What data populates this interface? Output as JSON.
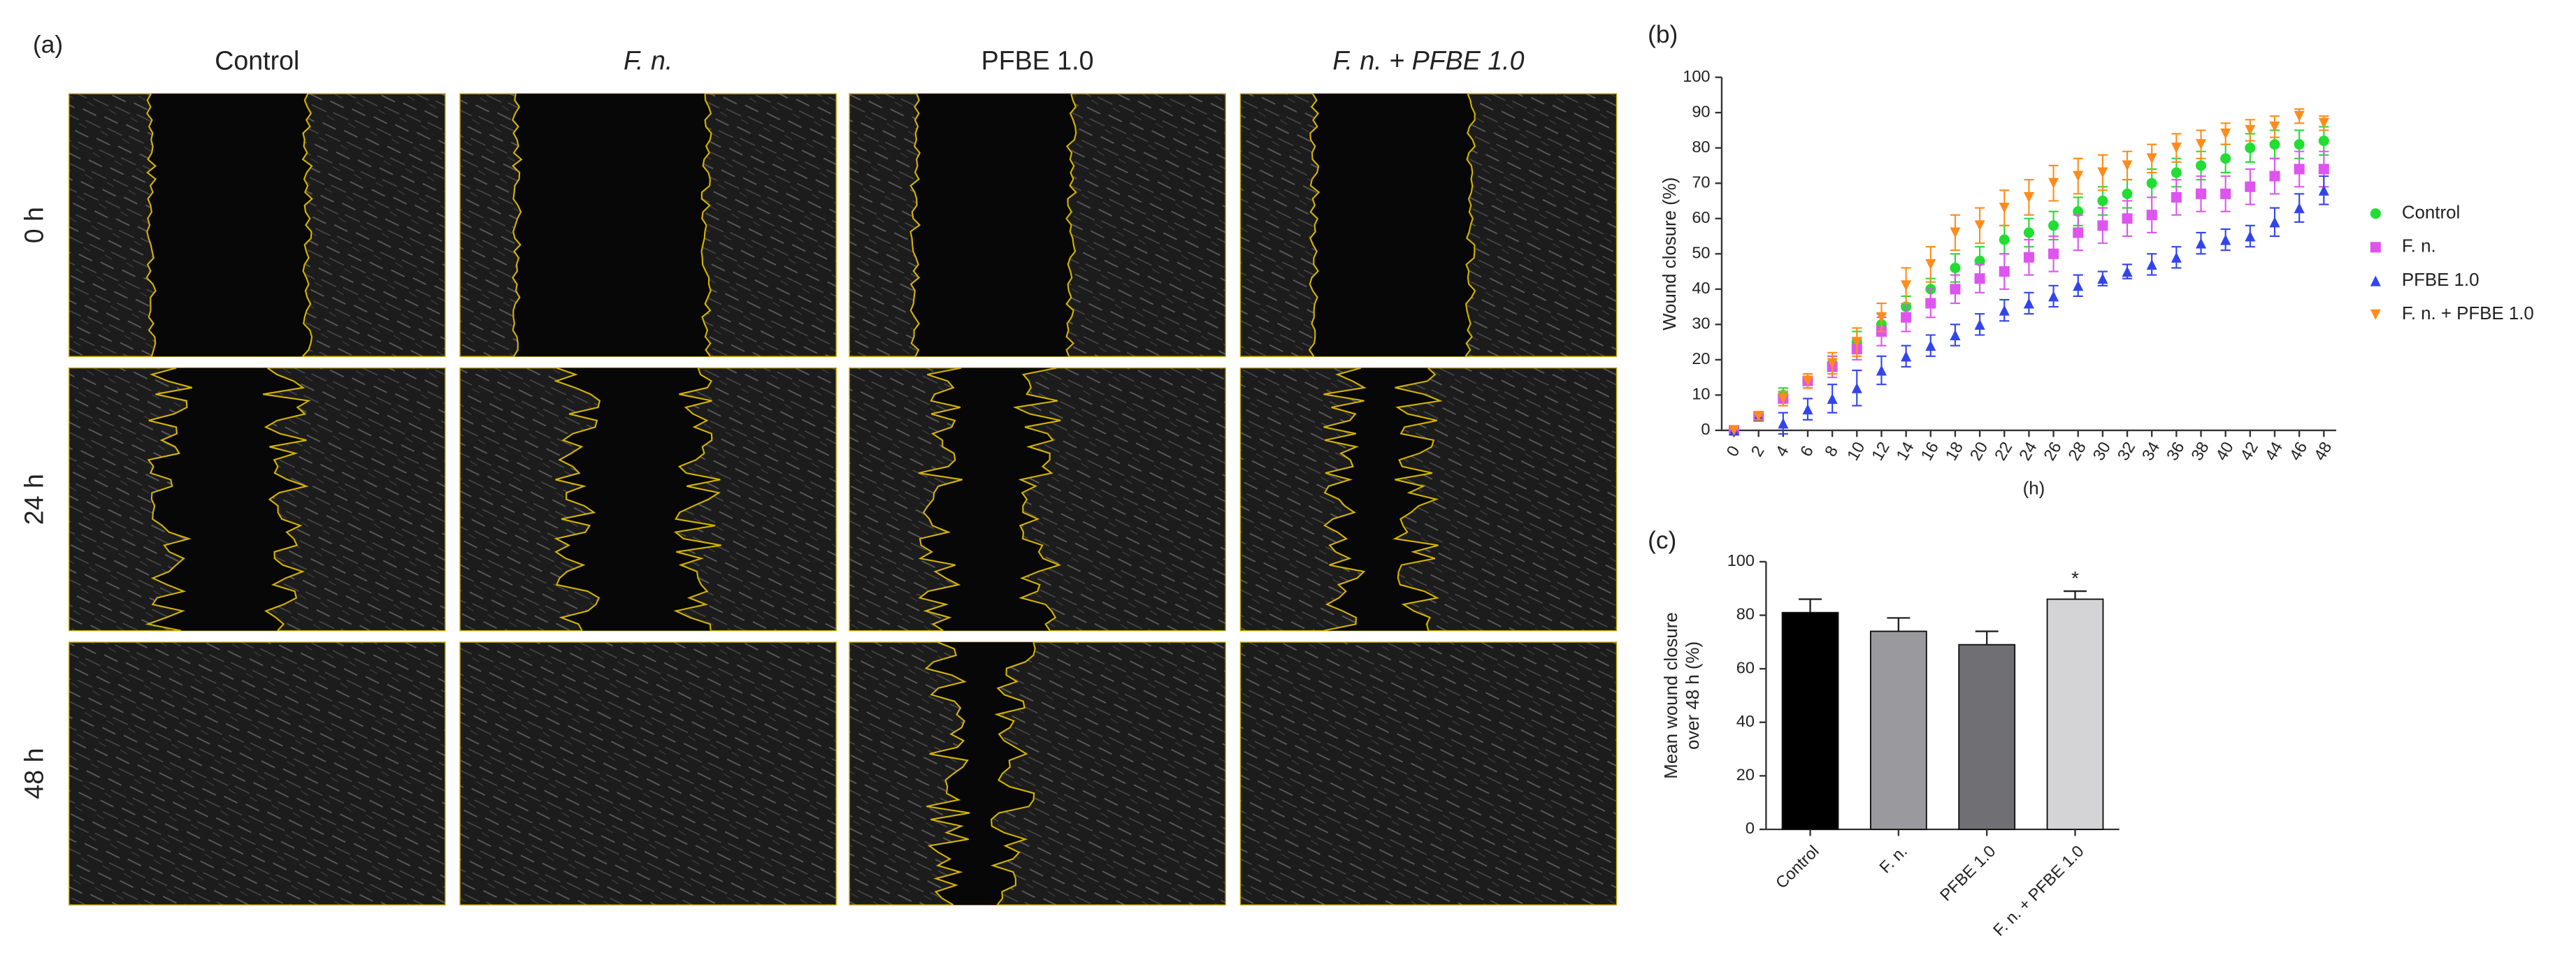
{
  "panel_a": {
    "label": "(a)",
    "columns": [
      "Control",
      "F. n.",
      "PFBE 1.0",
      "F. n. + PFBE 1.0"
    ],
    "rows": [
      "0 h",
      "24 h",
      "48 h"
    ]
  },
  "chart_data": [
    {
      "type": "scatter",
      "label": "(b)",
      "ylabel": "Wound closure (%)",
      "xlabel": "(h)",
      "x": [
        0,
        2,
        4,
        6,
        8,
        10,
        12,
        14,
        16,
        18,
        20,
        22,
        24,
        26,
        28,
        30,
        32,
        34,
        36,
        38,
        40,
        42,
        44,
        46,
        48
      ],
      "xlim": [
        -1,
        49
      ],
      "xticks": [
        0,
        2,
        4,
        6,
        8,
        10,
        12,
        14,
        16,
        18,
        20,
        22,
        24,
        26,
        28,
        30,
        32,
        34,
        36,
        38,
        40,
        42,
        44,
        46,
        48
      ],
      "ylim": [
        0,
        100
      ],
      "yticks": [
        0,
        10,
        20,
        30,
        40,
        50,
        60,
        70,
        80,
        90,
        100
      ],
      "legend": "right",
      "series": [
        {
          "name": "Control",
          "color": "#22dd33",
          "marker": "circle",
          "values": [
            0,
            4,
            10,
            14,
            19,
            25,
            30,
            35,
            40,
            46,
            48,
            54,
            56,
            58,
            62,
            65,
            67,
            70,
            73,
            75,
            77,
            80,
            81,
            81,
            82
          ],
          "errors": [
            0,
            1,
            2,
            2,
            2,
            3,
            3,
            3,
            3,
            4,
            4,
            4,
            4,
            4,
            4,
            4,
            4,
            4,
            4,
            4,
            4,
            4,
            4,
            4,
            4
          ]
        },
        {
          "name": "F. n.",
          "color": "#dd55ee",
          "marker": "square",
          "values": [
            0,
            4,
            9,
            14,
            18,
            23,
            28,
            32,
            36,
            40,
            43,
            45,
            49,
            50,
            56,
            58,
            60,
            61,
            66,
            67,
            67,
            69,
            72,
            74,
            74
          ],
          "errors": [
            0,
            1,
            2,
            2,
            3,
            3,
            4,
            4,
            4,
            4,
            4,
            5,
            5,
            5,
            5,
            5,
            5,
            5,
            5,
            5,
            5,
            5,
            5,
            5,
            5
          ]
        },
        {
          "name": "PFBE 1.0",
          "color": "#3344ee",
          "marker": "triangle-up",
          "values": [
            0,
            4,
            2,
            6,
            9,
            12,
            17,
            21,
            24,
            27,
            30,
            34,
            36,
            38,
            41,
            43,
            45,
            47,
            49,
            53,
            54,
            55,
            59,
            63,
            68
          ],
          "errors": [
            0,
            1,
            3,
            3,
            4,
            5,
            4,
            3,
            3,
            3,
            3,
            3,
            3,
            3,
            3,
            2,
            2,
            3,
            3,
            3,
            3,
            3,
            4,
            4,
            4
          ]
        },
        {
          "name": "F. n. + PFBE 1.0",
          "color": "#ff8c1a",
          "marker": "triangle-down",
          "values": [
            0,
            4,
            9,
            14,
            19,
            25,
            32,
            41,
            47,
            56,
            58,
            63,
            66,
            70,
            72,
            73,
            75,
            77,
            80,
            81,
            84,
            85,
            86,
            89,
            87
          ],
          "errors": [
            0,
            1,
            2,
            2,
            3,
            4,
            4,
            5,
            5,
            5,
            5,
            5,
            5,
            5,
            5,
            5,
            4,
            4,
            4,
            4,
            3,
            3,
            3,
            2,
            2
          ]
        }
      ]
    },
    {
      "type": "bar",
      "label": "(c)",
      "ylabel": [
        "Mean wound closure",
        "over 48 h (%)"
      ],
      "categories": [
        "Control",
        "F. n.",
        "PFBE 1.0",
        "F. n. + PFBE 1.0"
      ],
      "values": [
        81,
        74,
        69,
        86
      ],
      "errors": [
        5,
        5,
        5,
        3
      ],
      "colors": [
        "#000000",
        "#9a9a9e",
        "#707074",
        "#d4d4d6"
      ],
      "ylim": [
        0,
        100
      ],
      "yticks": [
        0,
        20,
        40,
        60,
        80,
        100
      ],
      "annotation": "*"
    }
  ]
}
